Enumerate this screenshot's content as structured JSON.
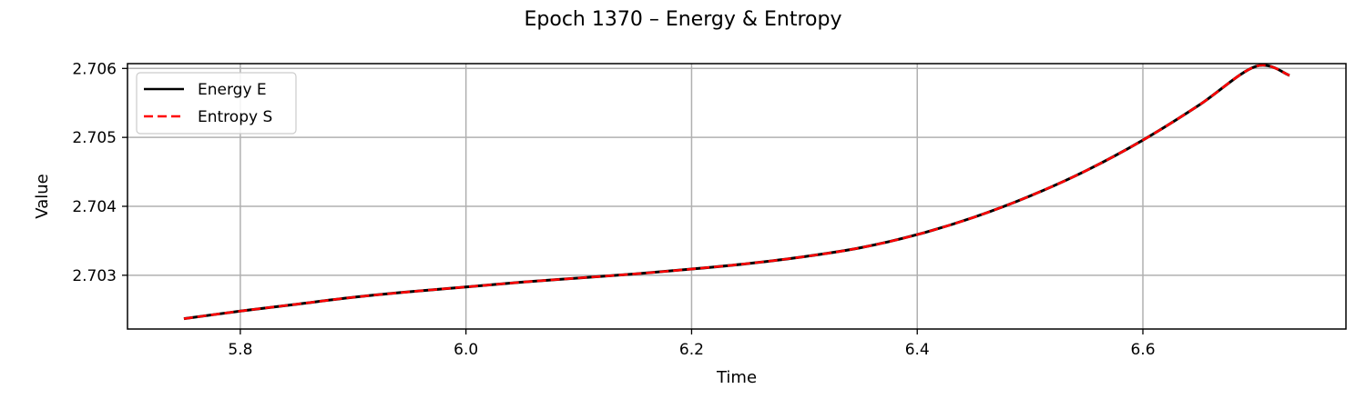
{
  "chart_data": {
    "type": "line",
    "title": "Epoch 1370 – Energy & Entropy",
    "xlabel": "Time",
    "ylabel": "Value",
    "xlim": [
      5.7,
      6.78
    ],
    "ylim": [
      2.70222,
      2.70607
    ],
    "x_ticks": [
      5.8,
      6.0,
      6.2,
      6.4,
      6.6
    ],
    "x_tick_labels": [
      "5.8",
      "6.0",
      "6.2",
      "6.4",
      "6.6"
    ],
    "y_ticks": [
      2.703,
      2.704,
      2.705,
      2.706
    ],
    "y_tick_labels": [
      "2.703",
      "2.704",
      "2.705",
      "2.706"
    ],
    "grid": true,
    "legend_position": "top-left",
    "series": [
      {
        "name": "Energy E",
        "color": "#000000",
        "style": "solid",
        "x": [
          5.75,
          5.8,
          5.85,
          5.9,
          5.95,
          6.0,
          6.05,
          6.1,
          6.15,
          6.2,
          6.25,
          6.3,
          6.35,
          6.4,
          6.45,
          6.5,
          6.55,
          6.6,
          6.65,
          6.7,
          6.73
        ],
        "y": [
          2.70237,
          2.70248,
          2.70258,
          2.70268,
          2.70276,
          2.70283,
          2.7029,
          2.70296,
          2.70302,
          2.70309,
          2.70317,
          2.70327,
          2.7034,
          2.70359,
          2.70384,
          2.70415,
          2.70452,
          2.70496,
          2.70547,
          2.70603,
          2.7059
        ]
      },
      {
        "name": "Entropy S",
        "color": "#ff0000",
        "style": "dashed",
        "x": [
          5.75,
          5.8,
          5.85,
          5.9,
          5.95,
          6.0,
          6.05,
          6.1,
          6.15,
          6.2,
          6.25,
          6.3,
          6.35,
          6.4,
          6.45,
          6.5,
          6.55,
          6.6,
          6.65,
          6.7,
          6.73
        ],
        "y": [
          2.70237,
          2.70248,
          2.70258,
          2.70268,
          2.70276,
          2.70283,
          2.7029,
          2.70296,
          2.70302,
          2.70309,
          2.70317,
          2.70327,
          2.7034,
          2.70359,
          2.70384,
          2.70415,
          2.70452,
          2.70496,
          2.70547,
          2.70603,
          2.7059
        ]
      }
    ]
  }
}
